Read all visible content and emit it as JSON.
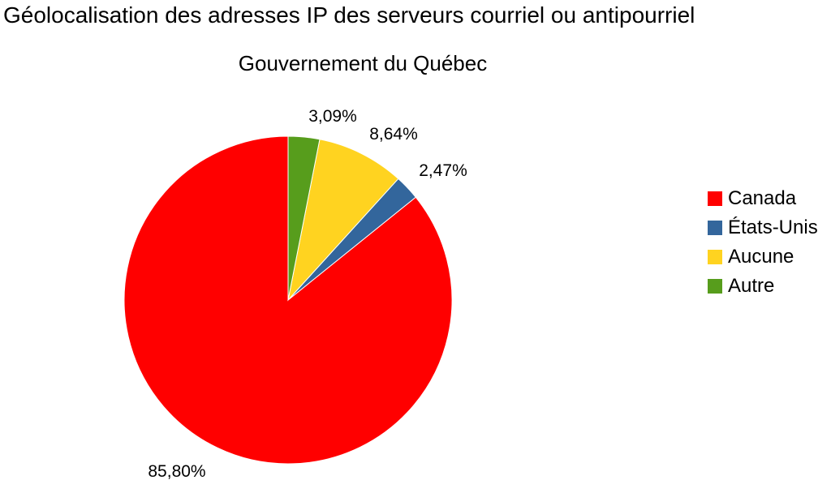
{
  "chart_data": {
    "type": "pie",
    "title": "Géolocalisation des adresses IP des serveurs courriel ou antipourriel",
    "subtitle": "Gouvernement du Québec",
    "legend_position": "right",
    "start_angle": "12-o'clock",
    "direction": "counterclockwise",
    "slices": [
      {
        "name": "Canada",
        "value": 85.8,
        "label": "85,80%",
        "color": "#ff0000"
      },
      {
        "name": "États-Unis",
        "value": 2.47,
        "label": "2,47%",
        "color": "#33669c"
      },
      {
        "name": "Aucune",
        "value": 8.64,
        "label": "8,64%",
        "color": "#ffd320"
      },
      {
        "name": "Autre",
        "value": 3.09,
        "label": "3,09%",
        "color": "#579d1c"
      }
    ]
  }
}
